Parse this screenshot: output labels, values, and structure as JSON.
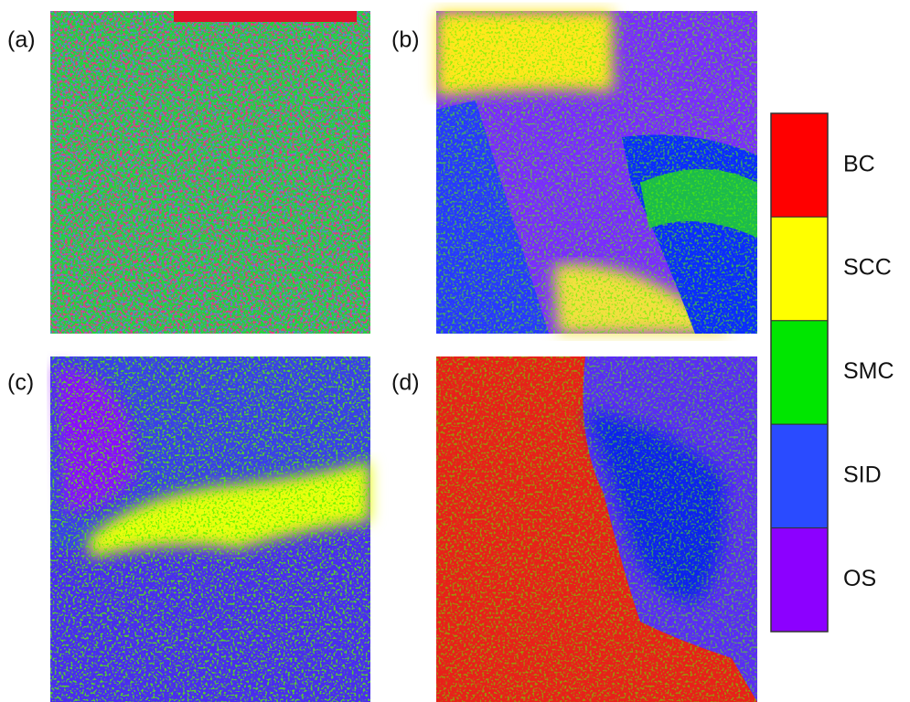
{
  "panels": [
    {
      "label": "(a)"
    },
    {
      "label": "(b)"
    },
    {
      "label": "(c)"
    },
    {
      "label": "(d)"
    }
  ],
  "legend": {
    "items": [
      {
        "name": "BC",
        "color": "#ff0000"
      },
      {
        "name": "SCC",
        "color": "#ffff00"
      },
      {
        "name": "SMC",
        "color": "#00e600"
      },
      {
        "name": "SID",
        "color": "#2a4bff"
      },
      {
        "name": "OS",
        "color": "#8c00ff"
      }
    ]
  }
}
